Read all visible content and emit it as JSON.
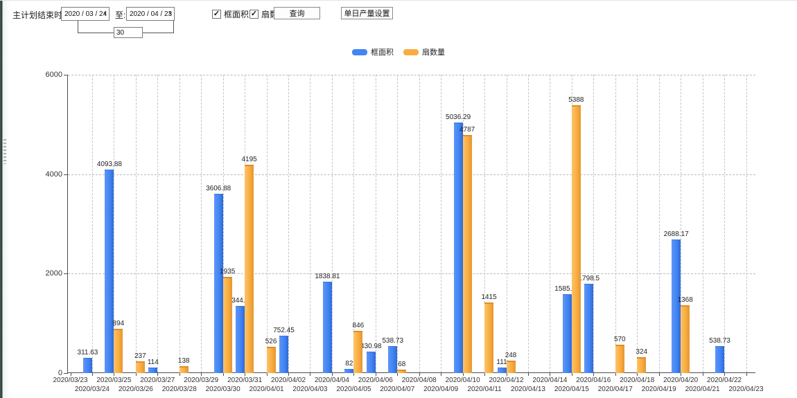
{
  "toolbar": {
    "label_start": "主计划结束时间:",
    "date_from": "2020 / 03 / 24",
    "label_to": "至:",
    "date_to": "2020 / 04 / 23",
    "span_days": "30",
    "checkbox_frame_area": "框面积",
    "checkbox_frame_area_checked": "✓",
    "checkbox_sash_count": "扇数量",
    "checkbox_sash_count_checked": "✓",
    "query_button": "查询",
    "daily_output_button": "单日产量设置"
  },
  "legend": {
    "items": [
      {
        "label": "框面积",
        "color": "#4285f4"
      },
      {
        "label": "扇数量",
        "color": "#f8ad42"
      }
    ]
  },
  "chart_data": {
    "type": "bar",
    "title": "",
    "xlabel": "",
    "ylabel": "",
    "ylim": [
      0,
      6000
    ],
    "yticks": [
      0,
      2000,
      4000,
      6000
    ],
    "grid": "dashed",
    "legend_position": "top-center",
    "categories": [
      "2020/03/23",
      "2020/03/24",
      "2020/03/25",
      "2020/03/26",
      "2020/03/27",
      "2020/03/28",
      "2020/03/29",
      "2020/03/30",
      "2020/03/31",
      "2020/04/01",
      "2020/04/02",
      "2020/04/03",
      "2020/04/04",
      "2020/04/05",
      "2020/04/06",
      "2020/04/07",
      "2020/04/08",
      "2020/04/09",
      "2020/04/10",
      "2020/04/11",
      "2020/04/12",
      "2020/04/13",
      "2020/04/14",
      "2020/04/15",
      "2020/04/16",
      "2020/04/17",
      "2020/04/18",
      "2020/04/19",
      "2020/04/20",
      "2020/04/21",
      "2020/04/22",
      "2020/04/23"
    ],
    "series": [
      {
        "name": "框面积",
        "color": "#4285f4",
        "values": [
          null,
          311.63,
          4093.88,
          null,
          114,
          null,
          null,
          3606.88,
          1344.95,
          null,
          752.45,
          null,
          1838.81,
          82,
          430.98,
          538.73,
          null,
          null,
          5036.29,
          null,
          111,
          null,
          null,
          1585.96,
          1798.5,
          null,
          null,
          null,
          2688.17,
          null,
          538.73,
          null
        ]
      },
      {
        "name": "扇数量",
        "color": "#f8ad42",
        "values": [
          null,
          null,
          894,
          237,
          null,
          138,
          null,
          1935,
          4195,
          526,
          null,
          null,
          null,
          846,
          null,
          68,
          null,
          null,
          4787,
          1415,
          248,
          null,
          null,
          5388,
          null,
          570,
          324,
          null,
          1368,
          null,
          null,
          null
        ]
      }
    ]
  }
}
